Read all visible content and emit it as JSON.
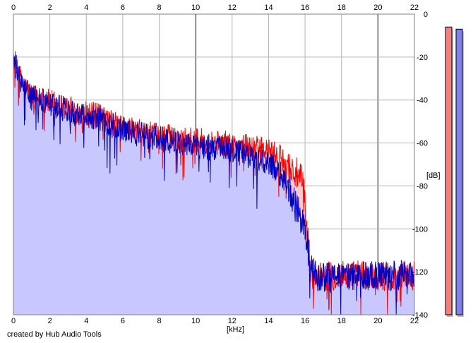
{
  "units": {
    "x": "[kHz]",
    "y": "[dB]"
  },
  "credit": "created by Hub Audio Tools",
  "colors": {
    "background": "#ffffff",
    "grid": "#b4b4b4",
    "grid_major": "#8c8c8c",
    "fill": "#c8c8ff",
    "fill_red": "#ffc8c8",
    "left_channel": "#ff0000",
    "right_channel": "#0000c8",
    "meter_left": "#f08080",
    "meter_right": "#8080f0"
  },
  "chart_data": {
    "type": "area",
    "xlabel": "[kHz]",
    "ylabel": "[dB]",
    "xlim": [
      0,
      22
    ],
    "ylim": [
      -140,
      0
    ],
    "x_ticks": [
      0,
      2,
      4,
      6,
      8,
      10,
      12,
      14,
      16,
      18,
      20,
      22
    ],
    "y_ticks": [
      0,
      -20,
      -40,
      -60,
      -80,
      -100,
      -120,
      -140
    ],
    "grid": true,
    "series": [
      {
        "channel": "left",
        "color": "#ff0000",
        "x": [
          0,
          0.25,
          0.5,
          1,
          1.5,
          2,
          2.5,
          3,
          3.5,
          4,
          4.5,
          5,
          5.5,
          6,
          6.5,
          7,
          7.5,
          8,
          8.5,
          9,
          9.5,
          10,
          10.5,
          11,
          11.5,
          12,
          12.5,
          13,
          13.5,
          14,
          14.5,
          15,
          15.3,
          15.6,
          15.9,
          16.1,
          16.3,
          16.6,
          17,
          17.5,
          18,
          18.5,
          19,
          19.5,
          20,
          20.5,
          21,
          21.5,
          22
        ],
        "y": [
          -20,
          -27,
          -33,
          -38,
          -39,
          -41,
          -42,
          -44,
          -45,
          -46,
          -47,
          -49,
          -51,
          -53,
          -54,
          -55,
          -56,
          -57,
          -57,
          -58,
          -58,
          -59,
          -59,
          -60,
          -60,
          -61,
          -61,
          -62,
          -63,
          -64,
          -66,
          -70,
          -73,
          -75,
          -80,
          -100,
          -120,
          -123,
          -122,
          -122,
          -121,
          -122,
          -121,
          -122,
          -122,
          -122,
          -122,
          -121,
          -122
        ]
      },
      {
        "channel": "right",
        "color": "#0000c8",
        "x": [
          0,
          0.25,
          0.5,
          1,
          1.5,
          2,
          2.5,
          3,
          3.5,
          4,
          4.5,
          5,
          5.5,
          6,
          6.5,
          7,
          7.5,
          8,
          8.5,
          9,
          9.5,
          10,
          10.5,
          11,
          11.5,
          12,
          12.5,
          13,
          13.5,
          14,
          14.5,
          15,
          15.3,
          15.6,
          15.9,
          16.1,
          16.3,
          16.6,
          17,
          17.5,
          18,
          18.5,
          19,
          19.5,
          20,
          20.5,
          21,
          21.5,
          22
        ],
        "y": [
          -22,
          -28,
          -34,
          -39,
          -40,
          -42,
          -43,
          -45,
          -46,
          -47,
          -48,
          -50,
          -52,
          -54,
          -55,
          -56,
          -57,
          -58,
          -59,
          -60,
          -60,
          -61,
          -62,
          -62,
          -63,
          -64,
          -65,
          -66,
          -68,
          -70,
          -73,
          -78,
          -86,
          -92,
          -98,
          -106,
          -118,
          -122,
          -122,
          -123,
          -123,
          -122,
          -121,
          -122,
          -122,
          -122,
          -122,
          -121,
          -122
        ]
      }
    ],
    "meters": [
      {
        "channel": "left",
        "color": "#f08080",
        "level_db": -6
      },
      {
        "channel": "right",
        "color": "#8080f0",
        "level_db": -7
      }
    ]
  }
}
